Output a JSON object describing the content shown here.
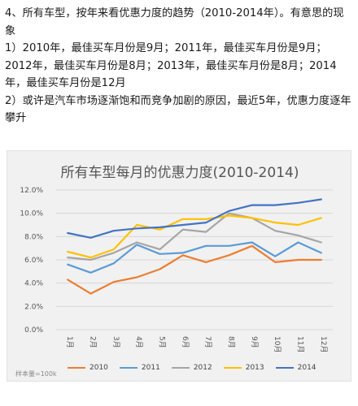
{
  "article": {
    "p1": "4、所有车型，按年来看优惠力度的趋势（2010-2014年）。有意思的现象",
    "p2": "1）2010年，最佳买车月份是9月；2011年，最佳买车月份是9月；2012年，最佳买车月份是8月；2013年，最佳买车月份是8月；2014年，最佳买车月份是12月",
    "p3": "2）或许是汽车市场逐渐饱和而竞争加剧的原因，最近5年，优惠力度逐年攀升"
  },
  "chart_data": {
    "type": "line",
    "title": "所有车型每月的优惠力度(2010-2014)",
    "x": [
      "1月",
      "2月",
      "3月",
      "4月",
      "5月",
      "6月",
      "7月",
      "8月",
      "9月",
      "10月",
      "11月",
      "12月"
    ],
    "y_ticks": [
      "0.0%",
      "2.0%",
      "4.0%",
      "6.0%",
      "8.0%",
      "10.0%",
      "12.0%"
    ],
    "ylim": [
      0,
      12
    ],
    "grid": true,
    "legend_position": "bottom",
    "series": [
      {
        "name": "2010",
        "color": "#ED7D31",
        "values": [
          4.3,
          3.1,
          4.1,
          4.5,
          5.2,
          6.4,
          5.8,
          6.4,
          7.2,
          5.8,
          6.0,
          6.0
        ]
      },
      {
        "name": "2011",
        "color": "#5B9BD5",
        "values": [
          5.6,
          4.9,
          5.7,
          7.3,
          6.5,
          6.6,
          7.2,
          7.2,
          7.5,
          6.3,
          7.5,
          6.6
        ]
      },
      {
        "name": "2012",
        "color": "#A5A5A5",
        "values": [
          6.2,
          6.0,
          6.6,
          7.5,
          6.9,
          8.6,
          8.4,
          10.0,
          9.6,
          8.5,
          8.1,
          7.5
        ]
      },
      {
        "name": "2013",
        "color": "#FFC000",
        "values": [
          6.7,
          6.2,
          6.9,
          9.0,
          8.6,
          9.5,
          9.5,
          9.8,
          9.6,
          9.2,
          9.0,
          9.6
        ]
      },
      {
        "name": "2014",
        "color": "#4472C4",
        "values": [
          8.3,
          7.9,
          8.5,
          8.7,
          8.8,
          9.0,
          9.2,
          10.2,
          10.7,
          10.7,
          10.9,
          11.2
        ]
      }
    ],
    "footnote": "样本量=100k"
  }
}
